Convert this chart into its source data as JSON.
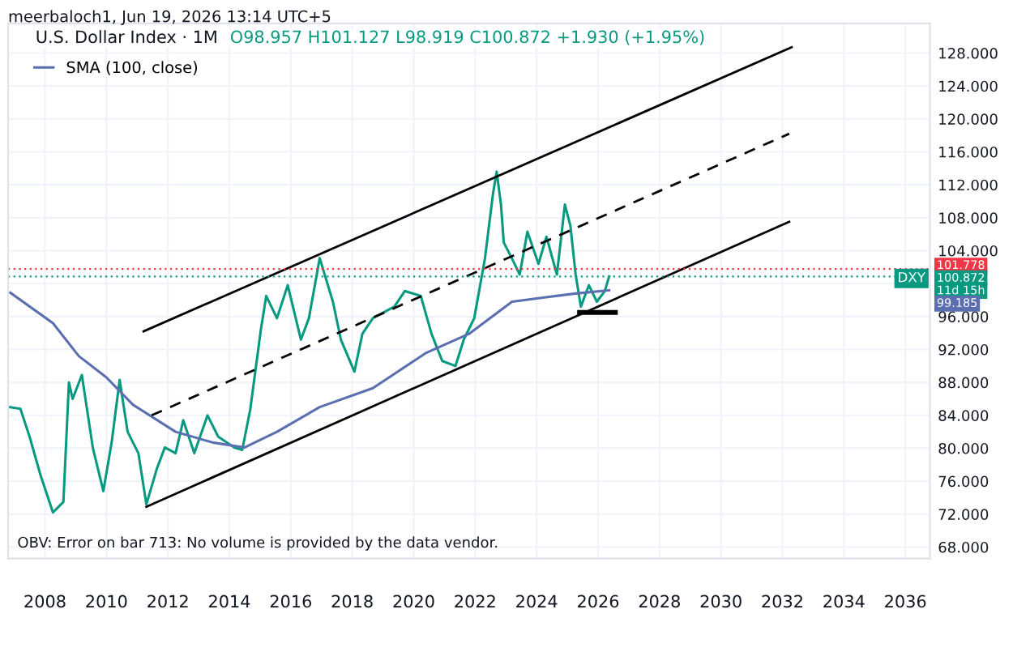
{
  "chart_data": {
    "type": "line",
    "title": "U.S. Dollar Index · 1M",
    "subtitle": "O98.957 H101.127 L98.919 C100.872 +1.930 (+1.95%)",
    "annotations": [
      "meerbaloch1, Jun 19, 2026 13:14 UTC+5",
      "OBV: Error on bar 713: No volume is provided by the data vendor.",
      "11d 15h",
      "99.185"
    ],
    "series": [
      {
        "name": "DXY",
        "color": "#089981",
        "x": [
          2006.87,
          2007.2,
          2007.5,
          2007.85,
          2008.26,
          2008.6,
          2008.78,
          2008.9,
          2009.2,
          2009.56,
          2009.9,
          2010.17,
          2010.43,
          2010.69,
          2011.04,
          2011.3,
          2011.64,
          2011.9,
          2012.25,
          2012.5,
          2012.86,
          2013.29,
          2013.64,
          2014.16,
          2014.42,
          2014.68,
          2015.03,
          2015.2,
          2015.55,
          2015.9,
          2016.33,
          2016.59,
          2016.94,
          2017.37,
          2017.63,
          2018.07,
          2018.33,
          2018.67,
          2019.37,
          2019.71,
          2020.23,
          2020.58,
          2020.93,
          2021.36,
          2021.63,
          2021.97,
          2022.32,
          2022.58,
          2022.7,
          2022.84,
          2022.93,
          2023.19,
          2023.45,
          2023.7,
          2024.06,
          2024.32,
          2024.66,
          2024.92,
          2025.1,
          2025.27,
          2025.44,
          2025.7,
          2025.96,
          2026.22,
          2026.36
        ],
        "values": [
          85.0,
          84.8,
          81.4,
          76.8,
          72.2,
          73.5,
          88.0,
          86.0,
          88.9,
          80.0,
          74.8,
          80.7,
          88.3,
          82.0,
          79.4,
          73.2,
          77.5,
          80.1,
          79.4,
          83.4,
          79.4,
          84.0,
          81.4,
          80.1,
          79.8,
          84.7,
          94.5,
          98.5,
          95.8,
          99.8,
          93.2,
          95.8,
          103.1,
          97.8,
          93.2,
          89.3,
          93.9,
          95.8,
          97.2,
          99.1,
          98.5,
          93.9,
          90.6,
          90.0,
          93.2,
          95.8,
          103.1,
          110.9,
          113.6,
          109.6,
          105.0,
          103.1,
          101.1,
          106.3,
          102.4,
          105.7,
          101.1,
          109.6,
          107.0,
          101.1,
          97.2,
          99.8,
          97.8,
          99.1,
          100.872
        ]
      },
      {
        "name": "SMA (100, close)",
        "color": "#5b6fb0",
        "x": [
          2006.87,
          2008.26,
          2009.1,
          2010.0,
          2010.86,
          2012.25,
          2013.46,
          2014.5,
          2015.55,
          2016.94,
          2018.67,
          2020.41,
          2021.8,
          2023.2,
          2024.2,
          2025.27,
          2026.36
        ],
        "values": [
          98.9,
          95.2,
          91.2,
          88.6,
          85.3,
          82.0,
          80.7,
          80.1,
          82.0,
          85.0,
          87.3,
          91.6,
          93.9,
          97.8,
          98.3,
          98.8,
          99.185
        ]
      },
      {
        "color": "#000000",
        "x": [
          2011.3,
          2032.22
        ],
        "values": [
          72.9,
          107.5
        ]
      },
      {
        "color": "#000000",
        "x": [
          2011.21,
          2032.3
        ],
        "values": [
          94.2,
          128.7
        ]
      },
      {
        "color": "#000000",
        "line_style": "dashed",
        "x": [
          2011.47,
          2032.22
        ],
        "values": [
          84.0,
          118.2
        ]
      },
      {
        "color": "#000000",
        "x": [
          2025.4,
          2026.56
        ],
        "values": [
          96.5,
          96.5
        ]
      }
    ],
    "ref_lines": [
      {
        "axis": "y",
        "value": 101.778,
        "label": "101.778",
        "color": "#f23645",
        "line_style": "dotted"
      },
      {
        "axis": "y",
        "value": 100.872,
        "label": "100.872",
        "color": "#089981",
        "line_style": "dotted"
      }
    ],
    "xlim": [
      2006.8,
      2036.8
    ],
    "xticks": [
      2008,
      2010,
      2012,
      2014,
      2016,
      2018,
      2020,
      2022,
      2024,
      2026,
      2028,
      2030,
      2032,
      2034,
      2036
    ],
    "ylim": [
      66.6,
      131.6
    ],
    "yticks": [
      {
        "value": 68,
        "label": "68.000"
      },
      {
        "value": 72,
        "label": "72.000"
      },
      {
        "value": 76,
        "label": "76.000"
      },
      {
        "value": 80,
        "label": "80.000"
      },
      {
        "value": 84,
        "label": "84.000"
      },
      {
        "value": 88,
        "label": "88.000"
      },
      {
        "value": 92,
        "label": "92.000"
      },
      {
        "value": 96,
        "label": "96.000"
      },
      {
        "value": 100,
        "label": null
      },
      {
        "value": 104,
        "label": "104.000"
      },
      {
        "value": 108,
        "label": "108.000"
      },
      {
        "value": 112,
        "label": "112.000"
      },
      {
        "value": 116,
        "label": "116.000"
      },
      {
        "value": 120,
        "label": "120.000"
      },
      {
        "value": 124,
        "label": "124.000"
      },
      {
        "value": 128,
        "label": "128.000"
      }
    ],
    "grid": true,
    "legend": "top left",
    "line_style": "solid"
  }
}
